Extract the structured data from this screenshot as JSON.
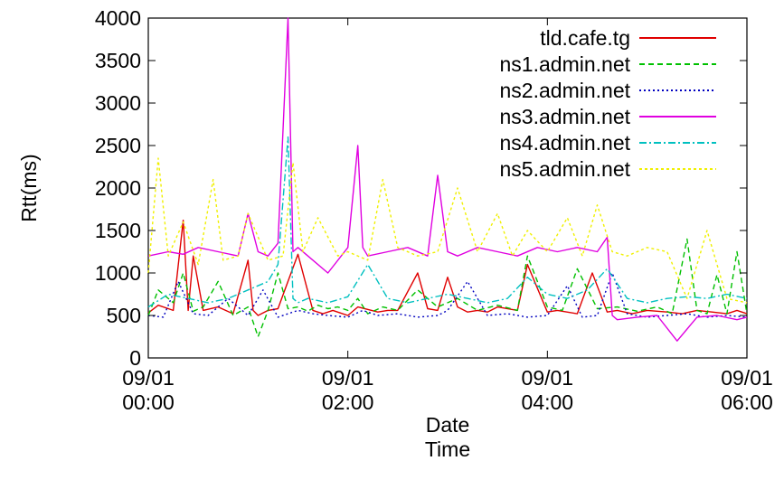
{
  "chart_data": {
    "type": "line",
    "xlabel": [
      "Date",
      "Time"
    ],
    "ylabel": "Rtt(ms)",
    "ylim": [
      0,
      4000
    ],
    "xlim": [
      "09/01 00:00",
      "09/01 06:00"
    ],
    "yticks": [
      "0",
      "500",
      "1000",
      "1500",
      "2000",
      "2500",
      "3000",
      "3500",
      "4000"
    ],
    "xticks": [
      {
        "date": "09/01",
        "time": "00:00",
        "hour": 0
      },
      {
        "date": "09/01",
        "time": "02:00",
        "hour": 2
      },
      {
        "date": "09/01",
        "time": "04:00",
        "hour": 4
      },
      {
        "date": "09/01",
        "time": "06:00",
        "hour": 6
      }
    ],
    "legend_position": "top-right",
    "series": [
      {
        "name": "tld.cafe.tg",
        "color": "#e00000",
        "dash": "solid",
        "x": [
          0,
          0.1,
          0.25,
          0.35,
          0.4,
          0.45,
          0.55,
          0.7,
          0.85,
          1.0,
          1.05,
          1.1,
          1.2,
          1.3,
          1.5,
          1.65,
          1.75,
          1.85,
          2.0,
          2.1,
          2.3,
          2.4,
          2.5,
          2.7,
          2.8,
          2.9,
          3.0,
          3.1,
          3.2,
          3.3,
          3.4,
          3.5,
          3.7,
          3.8,
          4.0,
          4.1,
          4.3,
          4.45,
          4.6,
          4.7,
          4.85,
          5.0,
          5.2,
          5.35,
          5.5,
          5.65,
          5.8,
          5.9,
          6.0
        ],
        "y": [
          530,
          620,
          560,
          1620,
          560,
          1200,
          560,
          600,
          520,
          1150,
          560,
          500,
          560,
          580,
          1220,
          560,
          520,
          560,
          500,
          600,
          540,
          560,
          560,
          1000,
          580,
          560,
          950,
          600,
          540,
          560,
          540,
          600,
          560,
          1100,
          540,
          560,
          520,
          1000,
          540,
          560,
          520,
          560,
          540,
          520,
          560,
          540,
          520,
          560,
          520
        ]
      },
      {
        "name": "ns1.admin.net",
        "color": "#00c000",
        "dash": "6,4",
        "x": [
          0,
          0.1,
          0.25,
          0.35,
          0.45,
          0.55,
          0.7,
          0.85,
          1.0,
          1.1,
          1.2,
          1.3,
          1.4,
          1.5,
          1.6,
          1.7,
          1.8,
          1.9,
          2.0,
          2.1,
          2.2,
          2.35,
          2.5,
          2.7,
          2.9,
          3.1,
          3.3,
          3.5,
          3.7,
          3.8,
          4.0,
          4.15,
          4.3,
          4.5,
          4.7,
          4.9,
          5.1,
          5.25,
          5.4,
          5.5,
          5.6,
          5.7,
          5.8,
          5.9,
          6.0
        ],
        "y": [
          500,
          800,
          650,
          1000,
          550,
          600,
          900,
          500,
          600,
          250,
          560,
          1000,
          580,
          600,
          550,
          620,
          580,
          600,
          560,
          700,
          520,
          600,
          560,
          800,
          600,
          700,
          560,
          620,
          560,
          1200,
          600,
          560,
          1050,
          580,
          600,
          550,
          600,
          520,
          1400,
          560,
          520,
          980,
          520,
          1250,
          520
        ]
      },
      {
        "name": "ns2.admin.net",
        "color": "#0000c0",
        "dash": "2,3",
        "x": [
          0,
          0.15,
          0.3,
          0.45,
          0.6,
          0.8,
          1.0,
          1.15,
          1.3,
          1.5,
          1.65,
          1.8,
          2.0,
          2.15,
          2.3,
          2.5,
          2.7,
          2.9,
          3.0,
          3.2,
          3.4,
          3.6,
          3.8,
          4.0,
          4.2,
          4.35,
          4.5,
          4.65,
          4.8,
          5.0,
          5.2,
          5.4,
          5.6,
          5.8,
          6.0
        ],
        "y": [
          500,
          480,
          900,
          520,
          500,
          700,
          500,
          800,
          480,
          560,
          520,
          500,
          480,
          560,
          500,
          520,
          480,
          500,
          560,
          900,
          500,
          520,
          480,
          500,
          850,
          480,
          500,
          1000,
          520,
          480,
          500,
          520,
          480,
          500,
          480
        ]
      },
      {
        "name": "ns3.admin.net",
        "color": "#e000e0",
        "dash": "solid",
        "x": [
          0,
          0.2,
          0.35,
          0.5,
          0.7,
          0.9,
          1.0,
          1.1,
          1.2,
          1.3,
          1.4,
          1.45,
          1.5,
          1.6,
          1.8,
          2.0,
          2.1,
          2.15,
          2.2,
          2.4,
          2.6,
          2.8,
          2.9,
          3.0,
          3.1,
          3.3,
          3.5,
          3.7,
          3.9,
          4.1,
          4.3,
          4.5,
          4.6,
          4.65,
          4.7,
          4.9,
          5.1,
          5.3,
          5.5,
          5.7,
          5.9,
          6.0
        ],
        "y": [
          1200,
          1250,
          1220,
          1300,
          1250,
          1200,
          1700,
          1250,
          1200,
          1350,
          4000,
          1250,
          1300,
          1200,
          1000,
          1300,
          2500,
          1300,
          1200,
          1250,
          1300,
          1200,
          2150,
          1250,
          1200,
          1300,
          1250,
          1200,
          1300,
          1250,
          1300,
          1250,
          1420,
          500,
          450,
          480,
          500,
          200,
          480,
          500,
          450,
          480
        ]
      },
      {
        "name": "ns4.admin.net",
        "color": "#00c0c0",
        "dash": "8,3,2,3",
        "x": [
          0,
          0.2,
          0.4,
          0.6,
          0.8,
          1.0,
          1.2,
          1.3,
          1.4,
          1.45,
          1.5,
          1.6,
          1.8,
          2.0,
          2.2,
          2.4,
          2.6,
          2.8,
          3.0,
          3.2,
          3.4,
          3.6,
          3.8,
          4.0,
          4.2,
          4.4,
          4.6,
          4.8,
          5.0,
          5.2,
          5.4,
          5.6,
          5.8,
          6.0
        ],
        "y": [
          600,
          750,
          700,
          650,
          700,
          800,
          900,
          1100,
          2600,
          700,
          650,
          700,
          650,
          720,
          1100,
          700,
          650,
          700,
          750,
          700,
          650,
          700,
          950,
          750,
          700,
          800,
          1050,
          700,
          650,
          700,
          720,
          700,
          750,
          700
        ]
      },
      {
        "name": "ns5.admin.net",
        "color": "#f0f000",
        "dash": "3,3",
        "x": [
          0,
          0.1,
          0.2,
          0.35,
          0.5,
          0.65,
          0.75,
          0.9,
          1.0,
          1.2,
          1.35,
          1.45,
          1.55,
          1.7,
          1.9,
          2.0,
          2.2,
          2.35,
          2.5,
          2.7,
          2.9,
          3.1,
          3.3,
          3.5,
          3.65,
          3.8,
          4.0,
          4.2,
          4.35,
          4.5,
          4.65,
          4.8,
          5.0,
          5.2,
          5.4,
          5.6,
          5.8,
          6.0
        ],
        "y": [
          1000,
          2350,
          1200,
          1600,
          1100,
          2100,
          1150,
          1200,
          1700,
          1150,
          1200,
          2300,
          1250,
          1650,
          1200,
          1250,
          1150,
          2100,
          1300,
          1200,
          1250,
          2000,
          1250,
          1700,
          1200,
          1500,
          1250,
          1650,
          1200,
          1800,
          1250,
          1200,
          1300,
          1250,
          700,
          1500,
          700,
          650
        ]
      }
    ]
  }
}
